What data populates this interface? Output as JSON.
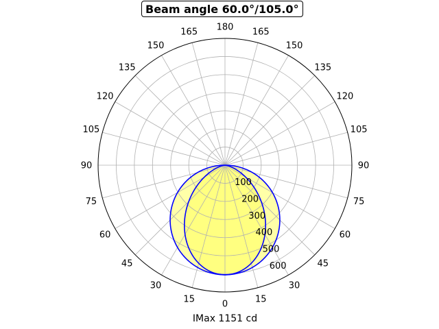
{
  "chart_data": {
    "type": "polar",
    "title": "Beam angle 60.0°/105.0°",
    "xlabel": "IMax 1151 cd",
    "angle_ticks": [
      {
        "deg": 0,
        "label": "0"
      },
      {
        "deg": 15,
        "label": "15"
      },
      {
        "deg": -15,
        "label": "15"
      },
      {
        "deg": 30,
        "label": "30"
      },
      {
        "deg": -30,
        "label": "30"
      },
      {
        "deg": 45,
        "label": "45"
      },
      {
        "deg": -45,
        "label": "45"
      },
      {
        "deg": 60,
        "label": "60"
      },
      {
        "deg": -60,
        "label": "60"
      },
      {
        "deg": 75,
        "label": "75"
      },
      {
        "deg": -75,
        "label": "75"
      },
      {
        "deg": 90,
        "label": "90"
      },
      {
        "deg": -90,
        "label": "90"
      },
      {
        "deg": 105,
        "label": "105"
      },
      {
        "deg": -105,
        "label": "105"
      },
      {
        "deg": 120,
        "label": "120"
      },
      {
        "deg": -120,
        "label": "120"
      },
      {
        "deg": 135,
        "label": "135"
      },
      {
        "deg": -135,
        "label": "135"
      },
      {
        "deg": 150,
        "label": "150"
      },
      {
        "deg": -150,
        "label": "150"
      },
      {
        "deg": 165,
        "label": "165"
      },
      {
        "deg": -165,
        "label": "165"
      },
      {
        "deg": 180,
        "label": "180"
      }
    ],
    "radial_ticks": [
      100,
      200,
      300,
      400,
      500,
      600
    ],
    "rlim": [
      0,
      700
    ],
    "grid": true,
    "series": [
      {
        "curve": "wide",
        "max_intensity": 605,
        "exponent": 1.0,
        "color": "#0000ff",
        "fill": "#ffffa8"
      },
      {
        "curve": "narrow",
        "max_intensity": 605,
        "exponent": 2.2,
        "color": "#0000ff",
        "fill": "#ffff80"
      }
    ]
  }
}
